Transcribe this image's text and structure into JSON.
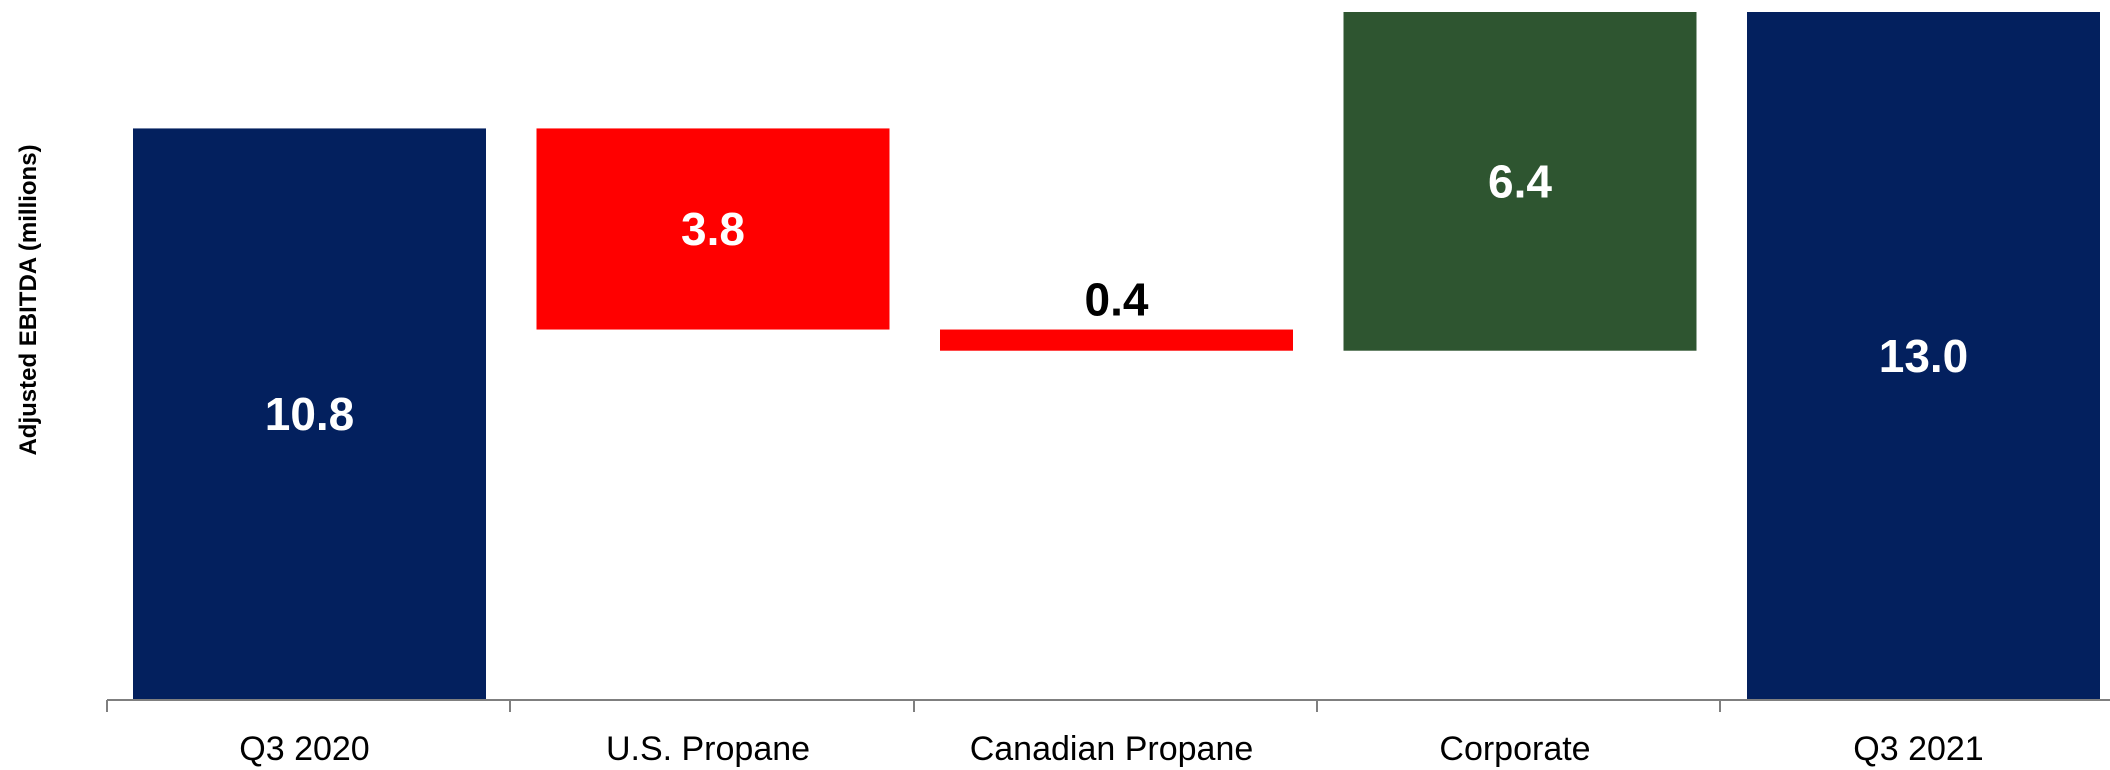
{
  "chart_data": {
    "type": "bar",
    "subtype": "waterfall",
    "ylabel": "Adjusted EBITDA (millions)",
    "xlabel": "",
    "categories": [
      "Q3 2020",
      "U.S. Propane",
      "Canadian Propane",
      "Corporate",
      "Q3 2021"
    ],
    "steps": [
      {
        "category": "Q3 2020",
        "kind": "total",
        "value": 10.8,
        "label": "10.8",
        "color": "#03205e",
        "label_color": "#ffffff"
      },
      {
        "category": "U.S. Propane",
        "kind": "decrease",
        "value": 3.8,
        "label": "3.8",
        "color": "#ff0000",
        "label_color": "#ffffff"
      },
      {
        "category": "Canadian Propane",
        "kind": "decrease",
        "value": 0.4,
        "label": "0.4",
        "color": "#ff0000",
        "label_color": "#000000"
      },
      {
        "category": "Corporate",
        "kind": "increase",
        "value": 6.4,
        "label": "6.4",
        "color": "#2e5530",
        "label_color": "#ffffff"
      },
      {
        "category": "Q3 2021",
        "kind": "total",
        "value": 13.0,
        "label": "13.0",
        "color": "#03205e",
        "label_color": "#ffffff"
      }
    ],
    "ylim": [
      0,
      13.0
    ],
    "grid": false,
    "legend": "none"
  }
}
